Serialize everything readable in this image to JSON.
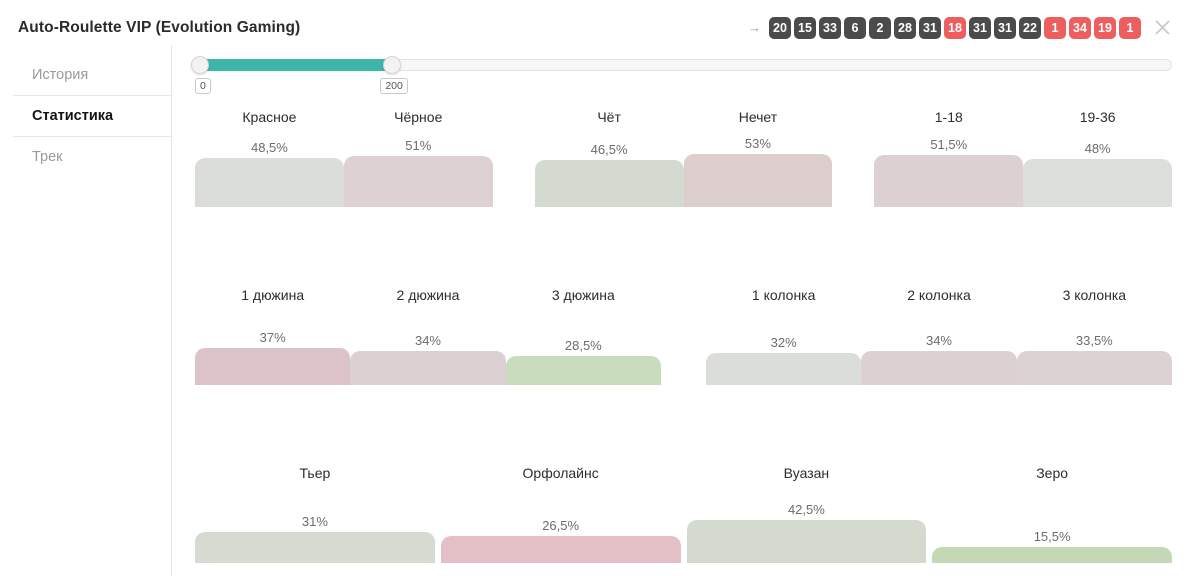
{
  "window": {
    "title": "Auto-Roulette VIP (Evolution Gaming)"
  },
  "icons": {
    "arrow": "→",
    "close": "close-x"
  },
  "recent_numbers": [
    {
      "value": "20",
      "color": "black"
    },
    {
      "value": "15",
      "color": "black"
    },
    {
      "value": "33",
      "color": "black"
    },
    {
      "value": "6",
      "color": "black"
    },
    {
      "value": "2",
      "color": "black"
    },
    {
      "value": "28",
      "color": "black"
    },
    {
      "value": "31",
      "color": "black"
    },
    {
      "value": "18",
      "color": "red"
    },
    {
      "value": "31",
      "color": "black"
    },
    {
      "value": "31",
      "color": "black"
    },
    {
      "value": "22",
      "color": "black"
    },
    {
      "value": "1",
      "color": "red"
    },
    {
      "value": "34",
      "color": "red"
    },
    {
      "value": "19",
      "color": "red"
    },
    {
      "value": "1",
      "color": "red"
    }
  ],
  "sidebar": {
    "items": [
      {
        "label": "История",
        "active": false
      },
      {
        "label": "Статистика",
        "active": true
      },
      {
        "label": "Трек",
        "active": false
      }
    ]
  },
  "slider": {
    "min_value": "0",
    "max_value": "200",
    "fill_percent": 20.3
  },
  "colors": {
    "badge_black": "#4b4b4b",
    "badge_red": "#ed5e5e",
    "slider_fill": "#3db7ac",
    "close_icon": "#c6c6c6"
  },
  "chart_data": {
    "type": "bar",
    "unit": "%",
    "ylabel": "",
    "title": "",
    "rows": [
      {
        "group_gap": 42,
        "groups": [
          [
            {
              "label": "Красное",
              "value": 48.5,
              "value_label": "48,5%",
              "color": "#dbddd9"
            },
            {
              "label": "Чёрное",
              "value": 51,
              "value_label": "51%",
              "color": "#ddd1d3"
            }
          ],
          [
            {
              "label": "Чёт",
              "value": 46.5,
              "value_label": "46,5%",
              "color": "#d5dad1"
            },
            {
              "label": "Нечет",
              "value": 53,
              "value_label": "53%",
              "color": "#dbcecd"
            }
          ],
          [
            {
              "label": "1-18",
              "value": 51.5,
              "value_label": "51,5%",
              "color": "#ddd0d2"
            },
            {
              "label": "19-36",
              "value": 48,
              "value_label": "48%",
              "color": "#dcdeda"
            }
          ]
        ]
      },
      {
        "group_gap": 45,
        "groups": [
          [
            {
              "label": "1 дюжина",
              "value": 37,
              "value_label": "37%",
              "color": "#dcc3c7"
            },
            {
              "label": "2 дюжина",
              "value": 34,
              "value_label": "34%",
              "color": "#ddd0d3"
            },
            {
              "label": "3 дюжина",
              "value": 28.5,
              "value_label": "28,5%",
              "color": "#c9dcbd"
            }
          ],
          [
            {
              "label": "1 колонка",
              "value": 32,
              "value_label": "32%",
              "color": "#dbddd9"
            },
            {
              "label": "2 колонка",
              "value": 34,
              "value_label": "34%",
              "color": "#ddd0d2"
            },
            {
              "label": "3 колонка",
              "value": 33.5,
              "value_label": "33,5%",
              "color": "#ddd2d3"
            }
          ]
        ]
      },
      {
        "group_gap": 6,
        "groups": [
          [
            {
              "label": "Тьер",
              "value": 31,
              "value_label": "31%",
              "color": "#d6dbd2"
            }
          ],
          [
            {
              "label": "Орфолайнс",
              "value": 26.5,
              "value_label": "26,5%",
              "color": "#e3c0c5"
            }
          ],
          [
            {
              "label": "Вуазан",
              "value": 42.5,
              "value_label": "42,5%",
              "color": "#d4dbce"
            }
          ],
          [
            {
              "label": "Зеро",
              "value": 15.5,
              "value_label": "15,5%",
              "color": "#c3d9b5"
            }
          ]
        ]
      }
    ]
  }
}
